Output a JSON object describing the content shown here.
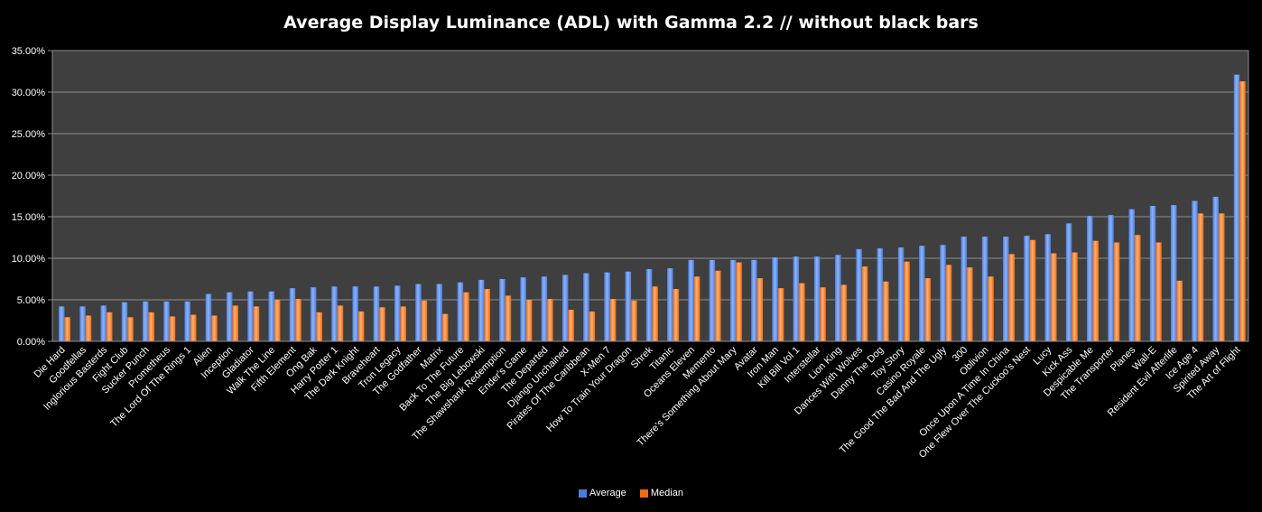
{
  "chart_data": {
    "type": "bar",
    "title": "Average Display Luminance (ADL) with Gamma 2.2 // without black bars",
    "xlabel": "",
    "ylabel": "",
    "ylim": [
      0,
      35
    ],
    "y_ticks": [
      "0.00%",
      "5.00%",
      "10.00%",
      "15.00%",
      "20.00%",
      "25.00%",
      "30.00%",
      "35.00%"
    ],
    "grid": true,
    "legend_position": "bottom",
    "categories": [
      "Die Hard",
      "Goodfellas",
      "Inglorious Basterds",
      "Fight Club",
      "Sucker Punch",
      "Prometheus",
      "The Lord Of The Rings 1",
      "Alien",
      "Inception",
      "Gladiator",
      "Walk The Line",
      "Fifth Element",
      "Ong Bak",
      "Harry Potter 1",
      "The Dark Knight",
      "Braveheart",
      "Tron Legacy",
      "The Godfather",
      "Matrix",
      "Back To The Future",
      "The Big Lebowski",
      "The Shawshank Redemption",
      "Ender's Game",
      "The Departed",
      "Django Unchained",
      "Pirates Of The Caribbean",
      "X-Men 7",
      "How To Train Your Dragon",
      "Shrek",
      "Titanic",
      "Oceans Eleven",
      "Memento",
      "There's Something About Mary",
      "Avatar",
      "Iron Man",
      "Kill Bill Vol 1",
      "Interstellar",
      "Lion King",
      "Dances With Wolves",
      "Danny The Dog",
      "Toy Story",
      "Casino Royale",
      "The Good The Bad And The Ugly",
      "300",
      "Oblivion",
      "Once Upon A Time In China",
      "One Flew Over The Cuckoo's Nest",
      "Lucy",
      "Kick Ass",
      "Despicable Me",
      "The Transporter",
      "Planes",
      "Wall-E",
      "Resident Evil Afterlife",
      "Ice Age 4",
      "Spirited Away",
      "The Art of Flight"
    ],
    "series": [
      {
        "name": "Average",
        "color": "#4a7de0",
        "values": [
          4.2,
          4.2,
          4.3,
          4.7,
          4.8,
          4.8,
          4.8,
          5.7,
          5.9,
          6.0,
          6.0,
          6.4,
          6.5,
          6.6,
          6.6,
          6.6,
          6.7,
          6.9,
          6.9,
          7.1,
          7.4,
          7.5,
          7.7,
          7.8,
          8.0,
          8.2,
          8.3,
          8.4,
          8.7,
          8.8,
          9.8,
          9.8,
          9.8,
          9.8,
          10.1,
          10.2,
          10.2,
          10.4,
          11.1,
          11.2,
          11.3,
          11.5,
          11.6,
          12.6,
          12.6,
          12.6,
          12.7,
          12.9,
          14.2,
          15.1,
          15.2,
          15.9,
          16.3,
          16.4,
          16.9,
          17.4,
          32.1
        ]
      },
      {
        "name": "Median",
        "color": "#f06a12",
        "values": [
          2.9,
          3.1,
          3.5,
          2.9,
          3.5,
          3.0,
          3.2,
          3.1,
          4.3,
          4.2,
          5.0,
          5.1,
          3.5,
          4.3,
          3.6,
          4.1,
          4.2,
          4.9,
          3.3,
          5.9,
          6.3,
          5.5,
          5.0,
          5.1,
          3.8,
          3.6,
          5.1,
          4.9,
          6.6,
          6.3,
          7.8,
          8.5,
          9.5,
          7.6,
          6.4,
          7.0,
          6.5,
          6.8,
          9.0,
          7.2,
          9.6,
          7.6,
          9.2,
          8.9,
          7.8,
          10.5,
          12.2,
          10.6,
          10.7,
          12.1,
          11.9,
          12.8,
          11.9,
          7.3,
          15.4,
          15.4,
          31.3
        ]
      }
    ]
  }
}
